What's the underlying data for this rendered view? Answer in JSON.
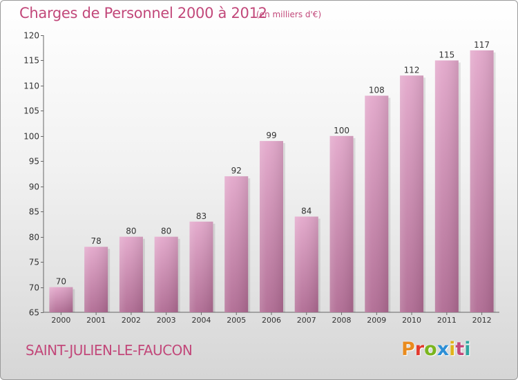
{
  "header": {
    "title": "Charges de Personnel 2000 à 2012",
    "subtitle": "(en milliers d'€)"
  },
  "footer": {
    "commune": "SAINT-JULIEN-LE-FAUCON",
    "logo_text": "Proxiti",
    "logo_colors": [
      "#e98b1e",
      "#e23a2e",
      "#7bb51e",
      "#2d8fd6",
      "#e0b21a",
      "#c2487a",
      "#2fa5a0"
    ]
  },
  "colors": {
    "accent": "#c2487a",
    "bar_top": "#e3a8cb",
    "bar_bottom": "#b06b93"
  },
  "chart_data": {
    "type": "bar",
    "title": "Charges de Personnel 2000 à 2012",
    "subtitle": "(en milliers d'€)",
    "categories": [
      "2000",
      "2001",
      "2002",
      "2003",
      "2004",
      "2005",
      "2006",
      "2007",
      "2008",
      "2009",
      "2010",
      "2011",
      "2012"
    ],
    "values": [
      70,
      78,
      80,
      80,
      83,
      92,
      99,
      84,
      100,
      108,
      112,
      115,
      117
    ],
    "ylim": [
      65,
      120
    ],
    "yticks": [
      65,
      70,
      75,
      80,
      85,
      90,
      95,
      100,
      105,
      110,
      115,
      120
    ],
    "grid": false,
    "legend": "none"
  }
}
